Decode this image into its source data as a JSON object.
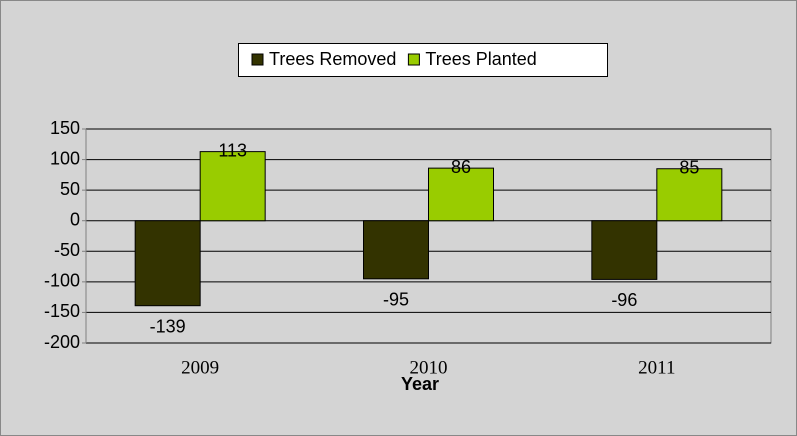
{
  "chart_data": {
    "type": "bar",
    "x_label": "Year",
    "categories": [
      "2009",
      "2010",
      "2011"
    ],
    "series": [
      {
        "name": "Trees Removed",
        "color": "#333300",
        "values": [
          -139,
          -95,
          -96
        ]
      },
      {
        "name": "Trees Planted",
        "color": "#99cc00",
        "values": [
          113,
          86,
          85
        ]
      }
    ],
    "ylim": [
      -200,
      150
    ],
    "yticks": [
      -200,
      -150,
      -100,
      -50,
      0,
      50,
      100,
      150
    ],
    "grid": true,
    "legend": "top"
  }
}
